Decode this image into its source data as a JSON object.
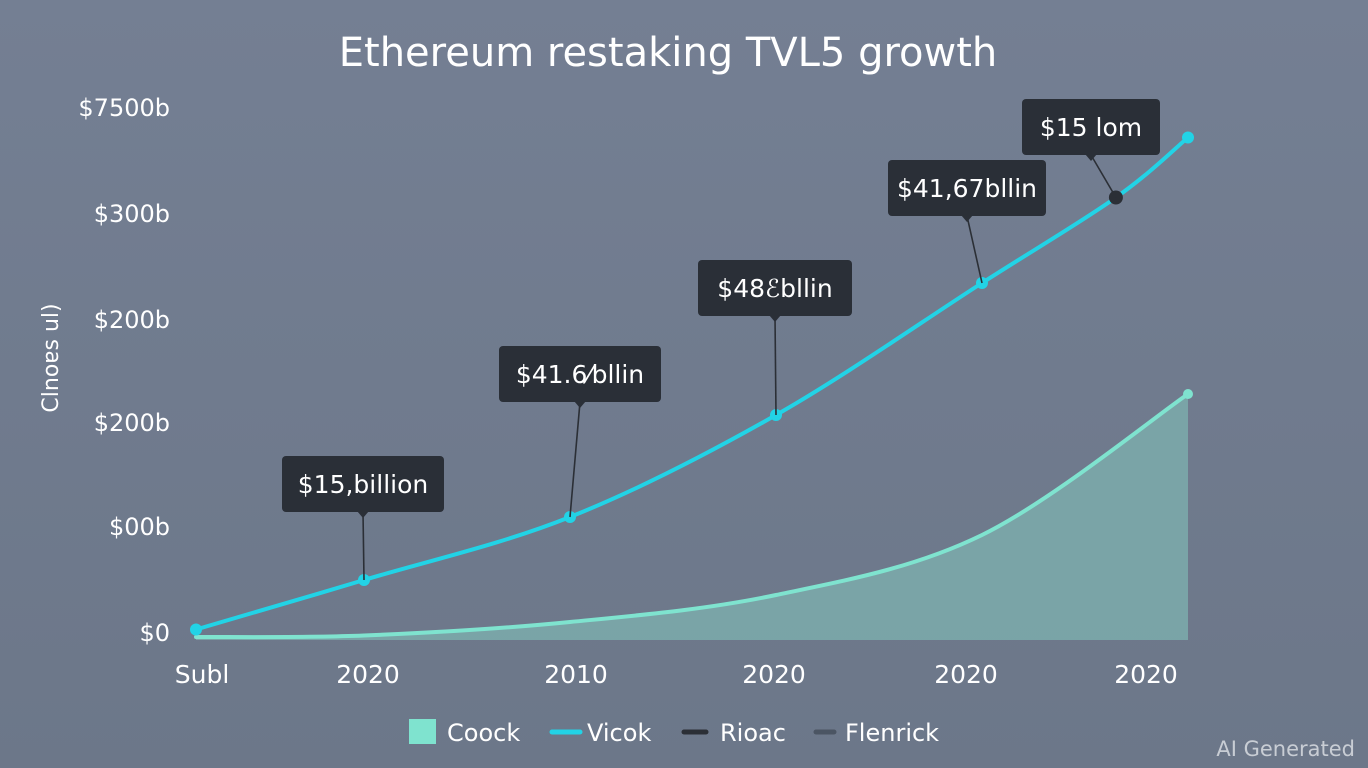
{
  "chart_data": {
    "type": "line",
    "title": "Ethereum restaking TVL5 growth",
    "ylabel": "Clnoɐs ul)",
    "y_ticks": [
      "$7500b",
      "$300b",
      "$200b",
      "$200b",
      "$00b",
      "$0"
    ],
    "x_ticks": [
      "Subl",
      "2020",
      "2010",
      "2020",
      "2020",
      "2020"
    ],
    "ylim": [
      0,
      360
    ],
    "grid": false,
    "legend_placement": "bottom",
    "series": [
      {
        "name": "Vicok",
        "color": "#22d3e6",
        "x": [
          0.2,
          1.0,
          2.0,
          3.0,
          4.0,
          4.65,
          5.0
        ],
        "values": [
          7,
          40,
          82,
          150,
          238,
          295,
          335
        ]
      },
      {
        "name": "Coock",
        "color": "#7fe3cf",
        "fill": "#7aa6a9",
        "x": [
          0.2,
          1.0,
          2.0,
          3.0,
          4.0,
          5.0
        ],
        "values": [
          2,
          3,
          12,
          30,
          70,
          164
        ]
      }
    ],
    "marker_series": {
      "name": "Rioac",
      "color": "#2b2f36",
      "x": 4.65,
      "y": 295
    },
    "annotations": [
      {
        "text": "$15,billion",
        "x": 1.0,
        "y": 40
      },
      {
        "text": "$41.6⁄bllin",
        "x": 2.0,
        "y": 82
      },
      {
        "text": "$48ℰbllin",
        "x": 3.0,
        "y": 150
      },
      {
        "text": "$41,67bllin",
        "x": 4.0,
        "y": 238
      },
      {
        "text": "$15 lom",
        "x": 4.65,
        "y": 295
      }
    ],
    "legend": [
      {
        "label": "Coock",
        "kind": "swatch",
        "color": "#7fe3cf"
      },
      {
        "label": "Vicok",
        "kind": "line",
        "color": "#22d3e6"
      },
      {
        "label": "Rioac",
        "kind": "line",
        "color": "#2b2f36"
      },
      {
        "label": "Flenrick",
        "kind": "line",
        "color": "#4b5563"
      }
    ]
  },
  "watermark": "AI Generated"
}
